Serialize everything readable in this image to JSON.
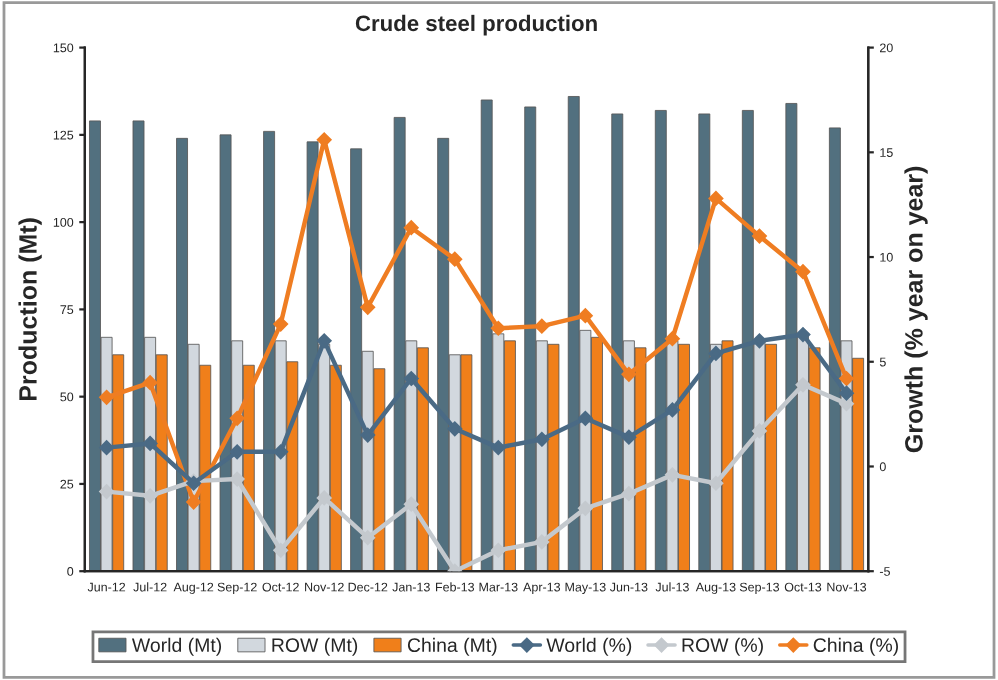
{
  "chart_data": {
    "type": "bar",
    "title": "Crude steel production",
    "ylabel": "Production (Mt)",
    "y2label": "Growth (% year on year)",
    "categories": [
      "Jun-12",
      "Jul-12",
      "Aug-12",
      "Sep-12",
      "Oct-12",
      "Nov-12",
      "Dec-12",
      "Jan-13",
      "Feb-13",
      "Mar-13",
      "Apr-13",
      "May-13",
      "Jun-13",
      "Jul-13",
      "Aug-13",
      "Sep-13",
      "Oct-13",
      "Nov-13"
    ],
    "series": [
      {
        "name": "World (Mt)",
        "color": "#52707f",
        "values": [
          129,
          129,
          124,
          125,
          126,
          123,
          121,
          130,
          124,
          135,
          133,
          136,
          131,
          132,
          131,
          132,
          134,
          127
        ]
      },
      {
        "name": "ROW (Mt)",
        "color": "#d2d8de",
        "values": [
          67,
          67,
          65,
          66,
          66,
          65,
          63,
          66,
          62,
          68,
          66,
          69,
          66,
          66,
          65,
          66,
          68,
          66
        ]
      },
      {
        "name": "China (Mt)",
        "color": "#f07f1a",
        "values": [
          62,
          62,
          59,
          59,
          60,
          59,
          58,
          64,
          62,
          66,
          65,
          67,
          64,
          65,
          66,
          65,
          64,
          61
        ]
      },
      {
        "name": "World (%)",
        "type": "line",
        "axis": "y2",
        "color": "#4a6a85",
        "values": [
          0.9,
          1.1,
          -0.8,
          0.7,
          0.7,
          6.0,
          1.5,
          4.2,
          1.8,
          0.9,
          1.3,
          2.3,
          1.4,
          2.7,
          5.4,
          6.0,
          6.3,
          3.5
        ]
      },
      {
        "name": "ROW (%)",
        "type": "line",
        "axis": "y2",
        "color": "#c4c9ce",
        "values": [
          -1.2,
          -1.4,
          -0.7,
          -0.6,
          -4.0,
          -1.5,
          -3.4,
          -1.8,
          -5.0,
          -4.0,
          -3.6,
          -2.0,
          -1.3,
          -0.4,
          -0.8,
          1.7,
          3.9,
          3.0
        ]
      },
      {
        "name": "China (%)",
        "type": "line",
        "axis": "y2",
        "color": "#ef7d22",
        "values": [
          3.3,
          4.0,
          -1.7,
          2.3,
          6.8,
          15.6,
          7.6,
          11.4,
          9.9,
          6.6,
          6.7,
          7.2,
          4.4,
          6.1,
          12.8,
          11.0,
          9.3,
          4.2
        ]
      }
    ],
    "ylim": [
      0,
      150
    ],
    "yticks": [
      0,
      25,
      50,
      75,
      100,
      125,
      150
    ],
    "y2lim": [
      -5,
      20
    ],
    "y2ticks": [
      -5,
      0,
      5,
      10,
      15,
      20
    ],
    "marker": "diamond",
    "line_style": "solid",
    "legend": "bottom",
    "grid": false
  }
}
